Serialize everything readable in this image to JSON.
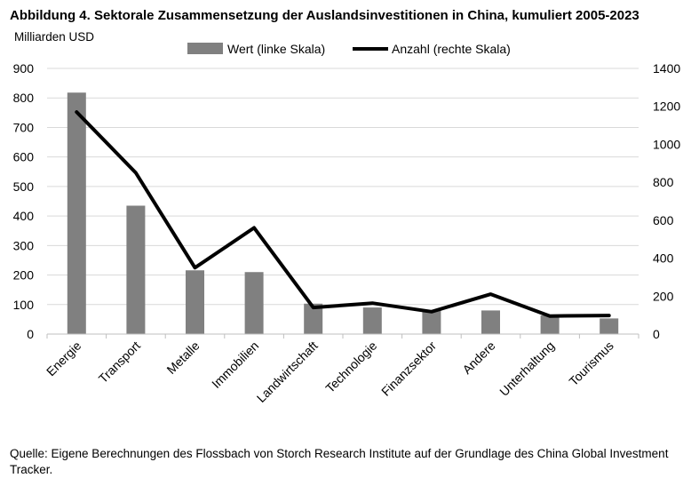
{
  "chart_data": {
    "type": "bar+line",
    "title": "Abbildung 4. Sektorale Zusammensetzung der Auslandsinvestitionen in China, kumuliert 2005-2023",
    "left_axis_label": "Milliarden USD",
    "categories": [
      "Energie",
      "Transport",
      "Metalle",
      "Immobilien",
      "Landwirtschaft",
      "Technologie",
      "Finanzsektor",
      "Andere",
      "Unterhaltung",
      "Tourismus"
    ],
    "series": [
      {
        "name": "Wert (linke Skala)",
        "type": "bar",
        "axis": "left",
        "color": "#808080",
        "values": [
          818,
          435,
          216,
          210,
          103,
          90,
          80,
          80,
          63,
          53
        ]
      },
      {
        "name": "Anzahl (rechte Skala)",
        "type": "line",
        "axis": "right",
        "color": "#000000",
        "values": [
          1170,
          850,
          350,
          560,
          140,
          163,
          118,
          210,
          95,
          98
        ]
      }
    ],
    "left_ylim": [
      0,
      900
    ],
    "left_ticks": [
      0,
      100,
      200,
      300,
      400,
      500,
      600,
      700,
      800,
      900
    ],
    "right_ylim": [
      0,
      1400
    ],
    "right_ticks": [
      0,
      200,
      400,
      600,
      800,
      1000,
      1200,
      1400
    ],
    "grid": true,
    "legend_position": "top-center"
  },
  "source_text": "Quelle: Eigene Berechnungen des Flossbach von Storch Research Institute auf der Grundlage des China Global Investment Tracker."
}
